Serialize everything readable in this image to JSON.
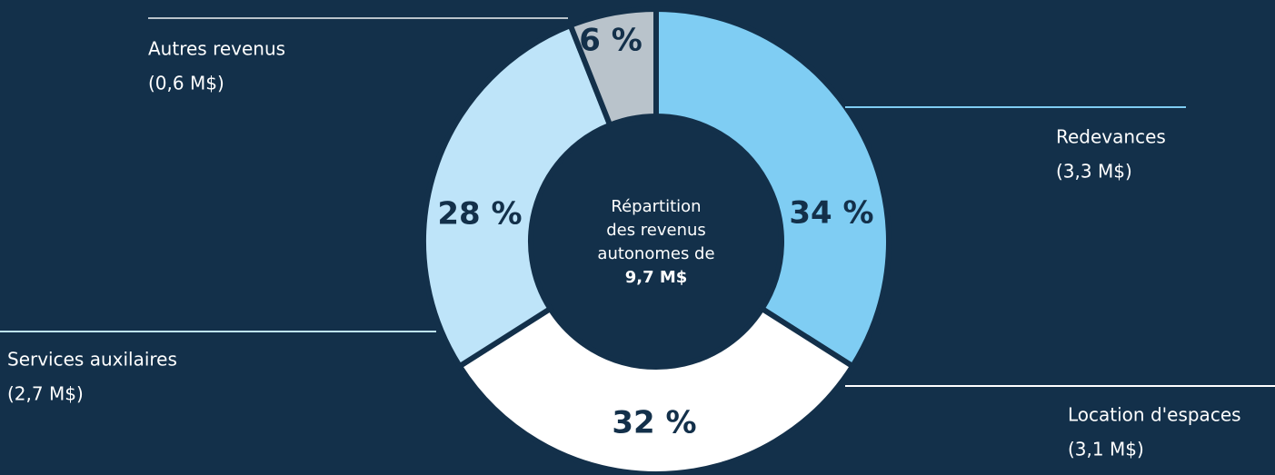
{
  "chart_data": {
    "type": "donut",
    "categories": [
      "Redevances",
      "Location d'espaces",
      "Services auxilaires",
      "Autres revenus"
    ],
    "amount_labels": [
      "(3,3 M$)",
      "(3,1 M$)",
      "(2,7 M$)",
      "(0,6 M$)"
    ],
    "values": [
      34,
      32,
      28,
      6
    ],
    "value_labels": [
      "34 %",
      "32 %",
      "28 %",
      "6 %"
    ],
    "colors": [
      "#7fcdf3",
      "#ffffff",
      "#bee4f9",
      "#b9c3cb"
    ],
    "center_text": [
      "Répartition",
      "des revenus",
      "autonomes de",
      "9,7 M$"
    ]
  }
}
